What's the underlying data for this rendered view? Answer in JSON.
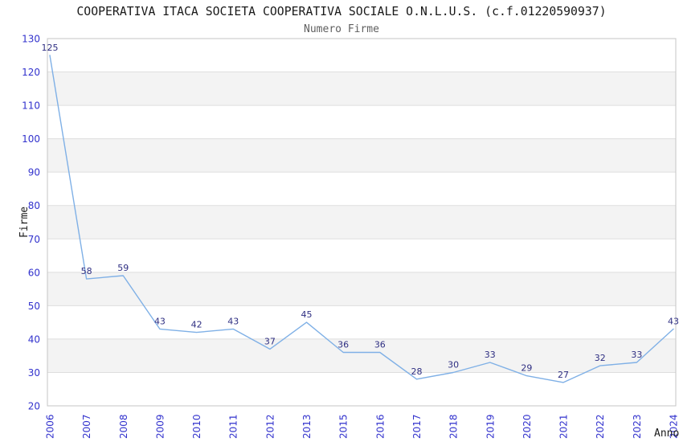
{
  "chart_data": {
    "type": "line",
    "title": "COOPERATIVA ITACA SOCIETA COOPERATIVA SOCIALE O.N.L.U.S. (c.f.01220590937)",
    "subtitle": "Numero Firme",
    "xlabel": "Anno",
    "ylabel": "Firme",
    "categories": [
      "2006",
      "2007",
      "2008",
      "2009",
      "2010",
      "2011",
      "2012",
      "2013",
      "2015",
      "2016",
      "2017",
      "2018",
      "2019",
      "2020",
      "2021",
      "2022",
      "2023",
      "2024"
    ],
    "values": [
      125,
      58,
      59,
      43,
      42,
      43,
      37,
      45,
      36,
      36,
      28,
      30,
      33,
      29,
      27,
      32,
      33,
      43
    ],
    "ylim": [
      20,
      130
    ],
    "ytick_step": 10,
    "legend": "none",
    "grid": "horizontal gridlines every 10 with alternating light-gray bands",
    "data_labels_visible": true,
    "colors": {
      "line": "#7fb0e6",
      "data_label": "#2e2e82",
      "tick_label": "#3232cd",
      "band_fill": "#f3f3f3",
      "gridline": "#dedede",
      "plot_border": "#c6c6c6",
      "title": "#1a1a1a",
      "subtitle": "#5f5f5f",
      "axis_label": "#1a1a1a"
    }
  }
}
